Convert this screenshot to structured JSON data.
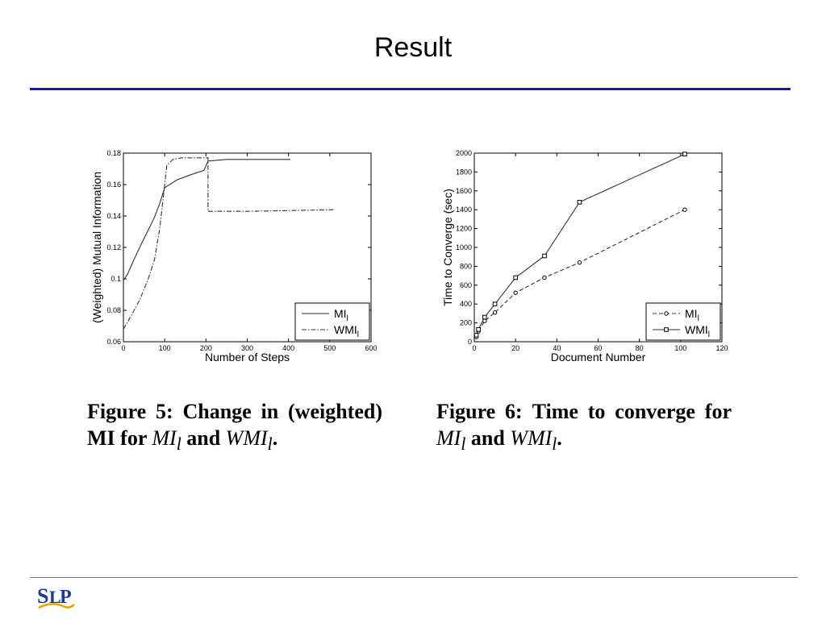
{
  "slide": {
    "title": "Result"
  },
  "colors": {
    "rule": "#1a1aa6",
    "logo_blue": "#1a3a9a",
    "logo_orange": "#e8a000"
  },
  "logo": {
    "text": "SLP"
  },
  "chart_data": [
    {
      "type": "line",
      "xlabel": "Number of Steps",
      "ylabel": "(Weighted) Mutual Information",
      "xlim": [
        0,
        600
      ],
      "ylim": [
        0.06,
        0.18
      ],
      "xticks": [
        "0",
        "100",
        "200",
        "300",
        "400",
        "500",
        "600"
      ],
      "yticks": [
        "0.06",
        "0.08",
        "0.1",
        "0.12",
        "0.14",
        "0.16",
        "0.18"
      ],
      "grid": false,
      "legend": "bottom-right",
      "series": [
        {
          "name": "MIl",
          "style": "solid",
          "points": [
            [
              0,
              0.099
            ],
            [
              10,
              0.103
            ],
            [
              25,
              0.112
            ],
            [
              45,
              0.123
            ],
            [
              60,
              0.131
            ],
            [
              75,
              0.139
            ],
            [
              88,
              0.148
            ],
            [
              100,
              0.158
            ],
            [
              130,
              0.163
            ],
            [
              160,
              0.166
            ],
            [
              195,
              0.169
            ],
            [
              205,
              0.175
            ],
            [
              250,
              0.176
            ],
            [
              405,
              0.176
            ]
          ]
        },
        {
          "name": "WMIl",
          "style": "dashdot",
          "points": [
            [
              0,
              0.068
            ],
            [
              20,
              0.077
            ],
            [
              40,
              0.087
            ],
            [
              60,
              0.1
            ],
            [
              75,
              0.112
            ],
            [
              88,
              0.132
            ],
            [
              98,
              0.155
            ],
            [
              105,
              0.172
            ],
            [
              120,
              0.176
            ],
            [
              140,
              0.177
            ],
            [
              205,
              0.177
            ],
            [
              205,
              0.143
            ],
            [
              300,
              0.143
            ],
            [
              510,
              0.144
            ]
          ]
        }
      ]
    },
    {
      "type": "line",
      "xlabel": "Document Number",
      "ylabel": "Time to Converge (sec)",
      "xlim": [
        0,
        120
      ],
      "ylim": [
        0,
        2000
      ],
      "xticks": [
        "0",
        "20",
        "40",
        "60",
        "80",
        "100",
        "120"
      ],
      "yticks": [
        "0",
        "200",
        "400",
        "600",
        "800",
        "1000",
        "1200",
        "1400",
        "1600",
        "1800",
        "2000"
      ],
      "grid": false,
      "legend": "bottom-right",
      "series": [
        {
          "name": "MIl",
          "style": "dashed",
          "marker": "circle",
          "points": [
            [
              1,
              50
            ],
            [
              2,
              110
            ],
            [
              5,
              220
            ],
            [
              10,
              310
            ],
            [
              20,
              520
            ],
            [
              34,
              680
            ],
            [
              51,
              840
            ],
            [
              102,
              1400
            ]
          ]
        },
        {
          "name": "WMIl",
          "style": "solid",
          "marker": "square",
          "points": [
            [
              1,
              70
            ],
            [
              2,
              130
            ],
            [
              5,
              260
            ],
            [
              10,
              400
            ],
            [
              20,
              680
            ],
            [
              34,
              910
            ],
            [
              51,
              1480
            ],
            [
              102,
              1990
            ]
          ]
        }
      ]
    }
  ],
  "captions": [
    {
      "label": "Figure 5:",
      "text_a": "Change in (weighted) MI for ",
      "math_a": "MI",
      "sub_a": "l",
      "text_b": " and ",
      "math_b": "WMI",
      "sub_b": "l",
      "end": "."
    },
    {
      "label": "Figure 6:",
      "text_a": "Time to converge for ",
      "math_a": "MI",
      "sub_a": "l",
      "text_b": " and ",
      "math_b": "WMI",
      "sub_b": "l",
      "end": "."
    }
  ]
}
